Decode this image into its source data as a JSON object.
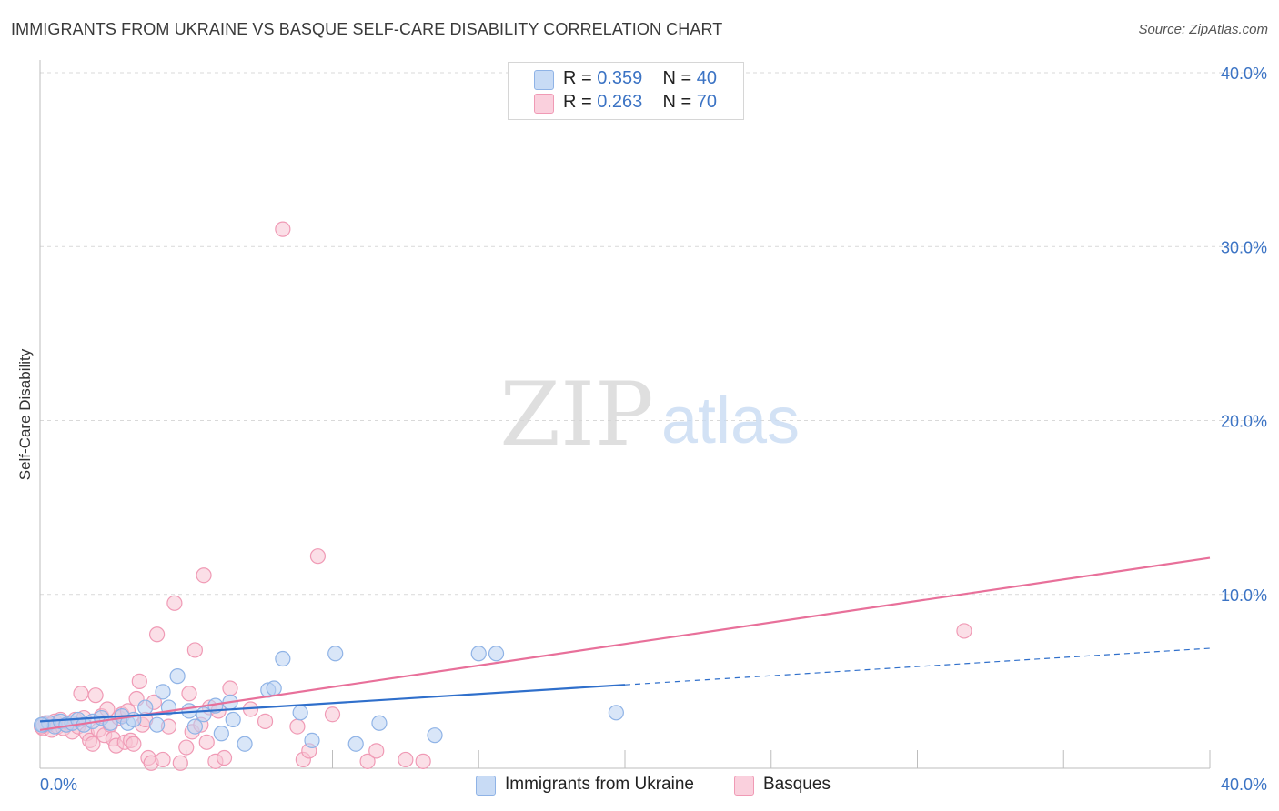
{
  "title": "IMMIGRANTS FROM UKRAINE VS BASQUE SELF-CARE DISABILITY CORRELATION CHART",
  "source": "Source: ZipAtlas.com",
  "watermark": {
    "zip": "ZIP",
    "atlas": "atlas"
  },
  "legend": {
    "rows": [
      {
        "r_label": "R = ",
        "r_value": "0.359",
        "n_label": "N = ",
        "n_value": "40"
      },
      {
        "r_label": "R = ",
        "r_value": "0.263",
        "n_label": "N = ",
        "n_value": "70"
      }
    ]
  },
  "colors": {
    "ukraine_fill": "#b9d2f3",
    "ukraine_stroke": "#8fb3e6",
    "ukraine_line": "#2f6fcb",
    "basque_fill": "#f8c5d4",
    "basque_stroke": "#f09ab5",
    "basque_line": "#e8709a",
    "tick_text": "#3b73c4",
    "grid": "#d9d9d9"
  },
  "chart_data": {
    "type": "scatter",
    "title": "IMMIGRANTS FROM UKRAINE VS BASQUE SELF-CARE DISABILITY CORRELATION CHART",
    "xlabel": "",
    "ylabel": "Self-Care Disability",
    "xlim": [
      0,
      40
    ],
    "ylim": [
      0,
      40
    ],
    "x_tick_labels": [
      "0.0%",
      "40.0%"
    ],
    "y_ticks": [
      10,
      20,
      30,
      40
    ],
    "y_tick_labels": [
      "10.0%",
      "20.0%",
      "30.0%",
      "40.0%"
    ],
    "legend_position": "top-center",
    "series": [
      {
        "name": "Immigrants from Ukraine",
        "r": 0.359,
        "n": 40,
        "trend": {
          "x0": 0,
          "y0": 2.7,
          "x1": 20,
          "y1": 4.8,
          "dash_to_x": 40,
          "dash_to_y": 6.9
        },
        "points": [
          [
            0.1,
            2.5
          ],
          [
            0.3,
            2.6
          ],
          [
            0.5,
            2.4
          ],
          [
            0.7,
            2.7
          ],
          [
            0.9,
            2.5
          ],
          [
            1.1,
            2.6
          ],
          [
            1.3,
            2.8
          ],
          [
            1.5,
            2.5
          ],
          [
            1.8,
            2.7
          ],
          [
            2.1,
            2.9
          ],
          [
            2.4,
            2.6
          ],
          [
            2.8,
            3.0
          ],
          [
            3.0,
            2.6
          ],
          [
            3.2,
            2.8
          ],
          [
            3.6,
            3.5
          ],
          [
            4.0,
            2.5
          ],
          [
            4.2,
            4.4
          ],
          [
            4.4,
            3.5
          ],
          [
            4.7,
            5.3
          ],
          [
            5.1,
            3.3
          ],
          [
            5.3,
            2.4
          ],
          [
            5.6,
            3.1
          ],
          [
            6.0,
            3.6
          ],
          [
            6.2,
            2.0
          ],
          [
            6.5,
            3.8
          ],
          [
            6.6,
            2.8
          ],
          [
            7.0,
            1.4
          ],
          [
            7.8,
            4.5
          ],
          [
            8.0,
            4.6
          ],
          [
            8.3,
            6.3
          ],
          [
            8.9,
            3.2
          ],
          [
            9.3,
            1.6
          ],
          [
            10.1,
            6.6
          ],
          [
            10.8,
            1.4
          ],
          [
            11.6,
            2.6
          ],
          [
            13.5,
            1.9
          ],
          [
            15.0,
            6.6
          ],
          [
            15.6,
            6.6
          ],
          [
            19.7,
            3.2
          ],
          [
            0.05,
            2.5
          ]
        ]
      },
      {
        "name": "Basques",
        "r": 0.263,
        "n": 70,
        "trend": {
          "x0": 0,
          "y0": 2.2,
          "x1": 40,
          "y1": 12.1
        },
        "points": [
          [
            0.1,
            2.3
          ],
          [
            0.2,
            2.6
          ],
          [
            0.3,
            2.5
          ],
          [
            0.4,
            2.2
          ],
          [
            0.5,
            2.7
          ],
          [
            0.6,
            2.4
          ],
          [
            0.7,
            2.8
          ],
          [
            0.8,
            2.3
          ],
          [
            0.9,
            2.5
          ],
          [
            1.0,
            2.6
          ],
          [
            1.1,
            2.1
          ],
          [
            1.2,
            2.8
          ],
          [
            1.3,
            2.4
          ],
          [
            1.4,
            4.3
          ],
          [
            1.5,
            2.9
          ],
          [
            1.6,
            2.0
          ],
          [
            1.7,
            1.6
          ],
          [
            1.8,
            1.4
          ],
          [
            1.9,
            4.2
          ],
          [
            2.0,
            2.2
          ],
          [
            2.1,
            3.0
          ],
          [
            2.2,
            1.9
          ],
          [
            2.3,
            3.4
          ],
          [
            2.4,
            2.5
          ],
          [
            2.5,
            1.7
          ],
          [
            2.6,
            1.3
          ],
          [
            2.7,
            2.9
          ],
          [
            2.8,
            3.1
          ],
          [
            2.9,
            1.5
          ],
          [
            3.0,
            3.3
          ],
          [
            3.1,
            1.6
          ],
          [
            3.2,
            1.4
          ],
          [
            3.3,
            4.0
          ],
          [
            3.4,
            5.0
          ],
          [
            3.5,
            2.5
          ],
          [
            3.6,
            2.8
          ],
          [
            3.7,
            0.6
          ],
          [
            3.8,
            0.3
          ],
          [
            3.9,
            3.8
          ],
          [
            4.0,
            7.7
          ],
          [
            4.2,
            0.5
          ],
          [
            4.4,
            2.4
          ],
          [
            4.6,
            9.5
          ],
          [
            4.8,
            0.3
          ],
          [
            5.0,
            1.2
          ],
          [
            5.1,
            4.3
          ],
          [
            5.2,
            2.1
          ],
          [
            5.3,
            6.8
          ],
          [
            5.5,
            2.5
          ],
          [
            5.6,
            11.1
          ],
          [
            5.7,
            1.5
          ],
          [
            5.8,
            3.5
          ],
          [
            6.0,
            0.4
          ],
          [
            6.1,
            3.3
          ],
          [
            6.3,
            0.6
          ],
          [
            6.5,
            4.6
          ],
          [
            7.2,
            3.4
          ],
          [
            7.7,
            2.7
          ],
          [
            8.3,
            31.0
          ],
          [
            8.8,
            2.4
          ],
          [
            9.0,
            0.5
          ],
          [
            9.2,
            1.0
          ],
          [
            9.5,
            12.2
          ],
          [
            10.0,
            3.1
          ],
          [
            11.2,
            0.4
          ],
          [
            11.5,
            1.0
          ],
          [
            12.5,
            0.5
          ],
          [
            13.1,
            0.4
          ],
          [
            31.6,
            7.9
          ],
          [
            0.05,
            2.4
          ]
        ]
      }
    ]
  },
  "bottom_legend": [
    "Immigrants from Ukraine",
    "Basques"
  ]
}
